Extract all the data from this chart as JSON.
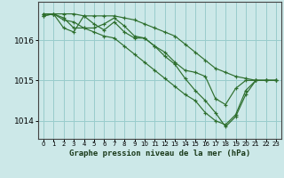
{
  "title": "Graphe pression niveau de la mer (hPa)",
  "background_color": "#cce8e8",
  "grid_color": "#99cccc",
  "line_color": "#2d6e2d",
  "xlim": [
    -0.5,
    23.5
  ],
  "ylim": [
    1013.55,
    1016.95
  ],
  "yticks": [
    1014,
    1015,
    1016
  ],
  "xticks": [
    0,
    1,
    2,
    3,
    4,
    5,
    6,
    7,
    8,
    9,
    10,
    11,
    12,
    13,
    14,
    15,
    16,
    17,
    18,
    19,
    20,
    21,
    22,
    23
  ],
  "series": [
    [
      1016.65,
      1016.65,
      1016.65,
      1016.65,
      1016.6,
      1016.6,
      1016.6,
      1016.6,
      1016.55,
      1016.5,
      1016.4,
      1016.3,
      1016.2,
      1016.1,
      1015.9,
      1015.7,
      1015.5,
      1015.3,
      1015.2,
      1015.1,
      1015.05,
      1015.0,
      1015.0,
      1015.0
    ],
    [
      1016.65,
      1016.65,
      1016.3,
      1016.2,
      1016.6,
      1016.4,
      1016.25,
      1016.45,
      1016.2,
      1016.05,
      1016.05,
      1015.85,
      1015.7,
      1015.45,
      1015.25,
      1015.2,
      1015.1,
      1014.55,
      1014.4,
      1014.8,
      1015.0,
      1015.0,
      1015.0,
      1015.0
    ],
    [
      1016.6,
      1016.65,
      1016.5,
      1016.45,
      1016.3,
      1016.2,
      1016.1,
      1016.05,
      1015.85,
      1015.65,
      1015.45,
      1015.25,
      1015.05,
      1014.85,
      1014.65,
      1014.5,
      1014.2,
      1014.0,
      1013.9,
      1014.15,
      1014.75,
      1015.0,
      1015.0,
      1015.0
    ],
    [
      1016.6,
      1016.65,
      1016.55,
      1016.3,
      1016.3,
      1016.3,
      1016.4,
      1016.55,
      1016.35,
      1016.1,
      1016.05,
      1015.85,
      1015.6,
      1015.4,
      1015.05,
      1014.75,
      1014.5,
      1014.2,
      1013.85,
      1014.1,
      1014.65,
      1015.0,
      1015.0,
      1015.0
    ]
  ]
}
